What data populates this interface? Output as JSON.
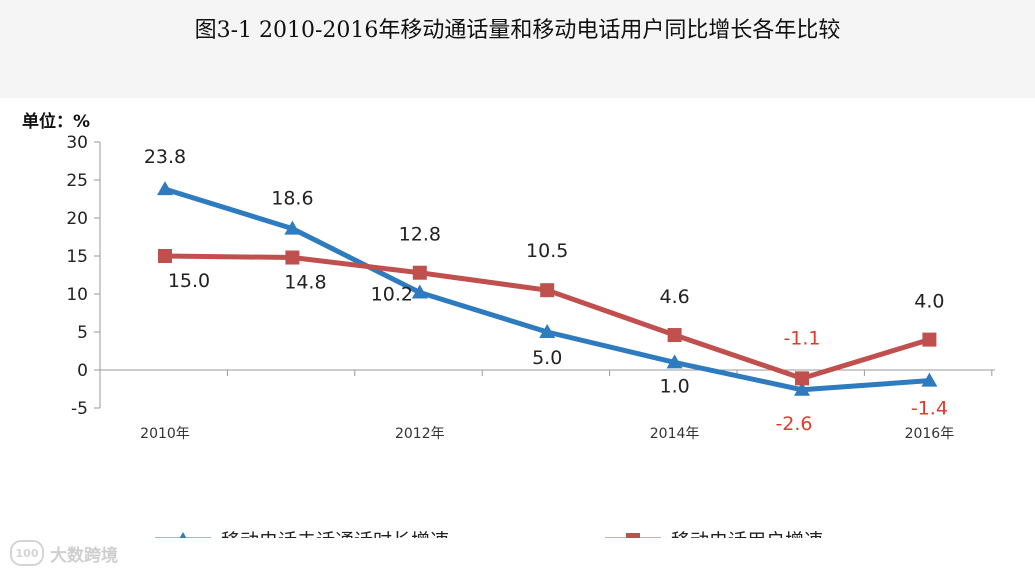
{
  "chart_data": {
    "type": "line",
    "title": "图3-1 2010-2016年移动通话量和移动电话用户同比增长各年比较",
    "unit_label": "单位：%",
    "x": [
      2010,
      2011,
      2012,
      2013,
      2014,
      2015,
      2016
    ],
    "x_tick_labels": [
      "2010年",
      "2012年",
      "2014年",
      "2016年"
    ],
    "ylim": [
      -5,
      30
    ],
    "y_ticks": [
      "30",
      "25",
      "20",
      "15",
      "10",
      "5",
      "0",
      "-5"
    ],
    "series": [
      {
        "name": "移动电话去话通话时长增速",
        "color": "#2e7bbf",
        "marker": "triangle",
        "values": [
          23.8,
          18.6,
          10.2,
          5.0,
          1.0,
          -2.6,
          -1.4
        ],
        "labels": [
          "23.8",
          "18.6",
          "10.2",
          "5.0",
          "1.0",
          "-2.6",
          "-1.4"
        ]
      },
      {
        "name": "移动电话用户增速",
        "color": "#c0504d",
        "marker": "square",
        "values": [
          15.0,
          14.8,
          12.8,
          10.5,
          4.6,
          -1.1,
          4.0
        ],
        "labels": [
          "15.0",
          "14.8",
          "12.8",
          "10.5",
          "4.6",
          "-1.1",
          "4.0"
        ]
      }
    ],
    "negative_label_color": "#e03a2e"
  },
  "watermark": {
    "logo": "100",
    "text": "大数跨境"
  }
}
